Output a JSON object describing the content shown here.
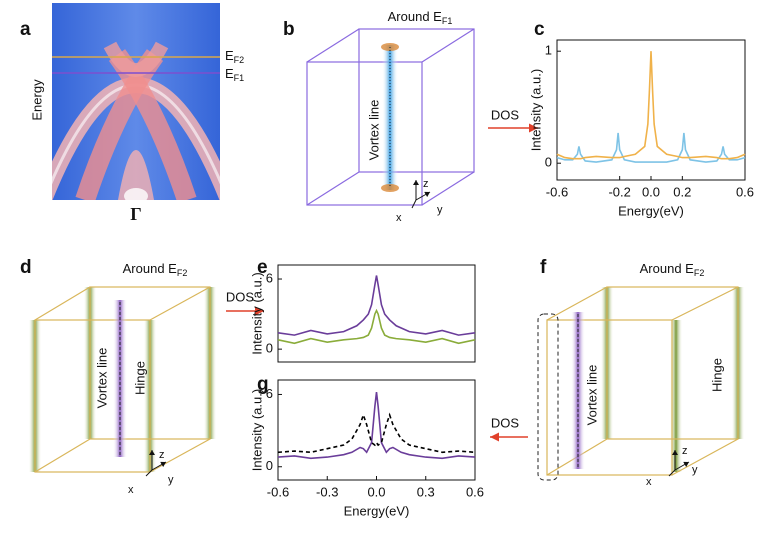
{
  "panel_labels": [
    "a",
    "b",
    "c",
    "d",
    "e",
    "f",
    "g"
  ],
  "panel_a": {
    "y_label": "Energy",
    "x_label": "Γ",
    "levels": [
      {
        "main": "E",
        "sub": "F2"
      },
      {
        "main": "E",
        "sub": "F1"
      }
    ]
  },
  "panel_b": {
    "title": {
      "main": "Around E",
      "sub": "F1"
    },
    "vortex_label": "Vortex line",
    "axes": [
      "z",
      "y",
      "x"
    ],
    "arrow_label": "DOS"
  },
  "panel_d": {
    "title": {
      "main": "Around E",
      "sub": "F2"
    },
    "vortex_label": "Vortex line",
    "hinge_label": "Hinge",
    "axes": [
      "z",
      "y",
      "x"
    ],
    "arrow_label": "DOS"
  },
  "panel_f": {
    "title": {
      "main": "Around E",
      "sub": "F2"
    },
    "vortex_label": "Vortex line",
    "hinge_label": "Hinge",
    "axes": [
      "z",
      "y",
      "x"
    ],
    "arrow_label": "DOS"
  },
  "chart_data": [
    {
      "type": "line",
      "y_label": "Intensity (a.u.)",
      "x_label": "Energy(eV)",
      "x": [
        -0.6,
        -0.55,
        -0.5,
        -0.47,
        -0.46,
        -0.45,
        -0.42,
        -0.35,
        -0.25,
        -0.22,
        -0.21,
        -0.2,
        -0.17,
        -0.1,
        -0.04,
        -0.02,
        -0.01,
        0,
        0.01,
        0.02,
        0.04,
        0.1,
        0.17,
        0.2,
        0.21,
        0.22,
        0.25,
        0.35,
        0.42,
        0.45,
        0.46,
        0.47,
        0.5,
        0.55,
        0.6
      ],
      "series": [
        {
          "color": "#7ec3e6",
          "values": [
            0.05,
            0.03,
            0.03,
            0.08,
            0.15,
            0.08,
            0.02,
            0.01,
            0.03,
            0.12,
            0.27,
            0.12,
            0.03,
            0.01,
            0.01,
            0.01,
            0.01,
            0.01,
            0.01,
            0.01,
            0.01,
            0.01,
            0.03,
            0.12,
            0.27,
            0.12,
            0.03,
            0.01,
            0.02,
            0.08,
            0.15,
            0.08,
            0.03,
            0.03,
            0.05
          ]
        },
        {
          "color": "#f0b24a",
          "values": [
            0.08,
            0.05,
            0.04,
            0.04,
            0.04,
            0.04,
            0.05,
            0.06,
            0.05,
            0.05,
            0.05,
            0.05,
            0.06,
            0.08,
            0.15,
            0.35,
            0.65,
            1,
            0.65,
            0.35,
            0.15,
            0.08,
            0.06,
            0.05,
            0.05,
            0.05,
            0.05,
            0.06,
            0.05,
            0.04,
            0.04,
            0.04,
            0.04,
            0.05,
            0.08
          ]
        }
      ],
      "xlim": [
        -0.6,
        0.6
      ],
      "xticks": [
        -0.6,
        -0.2,
        {
          "value": 0,
          "label": "0.0"
        },
        0.2,
        0.6
      ],
      "ylim": [
        -0.15,
        1.1
      ],
      "yticks": [
        0,
        1
      ]
    },
    {
      "type": "line",
      "y_label": "Intensity (a.u.)",
      "x": [
        -0.6,
        -0.5,
        -0.4,
        -0.3,
        -0.2,
        -0.12,
        -0.08,
        -0.05,
        -0.03,
        -0.01,
        0,
        0.01,
        0.03,
        0.05,
        0.08,
        0.12,
        0.2,
        0.3,
        0.4,
        0.5,
        0.6
      ],
      "series": [
        {
          "color": "#6a3d9a",
          "values": [
            1.4,
            1.2,
            1.6,
            1.3,
            1.5,
            2.0,
            2.5,
            3.0,
            3.8,
            5.5,
            6.3,
            5.5,
            3.8,
            3.0,
            2.5,
            2.0,
            1.5,
            1.3,
            1.6,
            1.2,
            1.4
          ]
        },
        {
          "color": "#8aac3a",
          "values": [
            0.8,
            0.5,
            0.9,
            0.6,
            0.8,
            0.9,
            1.0,
            1.2,
            1.8,
            3.0,
            3.3,
            3.0,
            1.8,
            1.2,
            1.0,
            0.9,
            0.8,
            0.6,
            0.9,
            0.5,
            0.8
          ]
        }
      ],
      "xlim": [
        -0.6,
        0.6
      ],
      "ylim": [
        -1.1,
        7.2
      ],
      "yticks": [
        0,
        6
      ]
    },
    {
      "type": "line",
      "y_label": "Intensity (a.u.)",
      "x_label": "Energy(eV)",
      "x": [
        -0.6,
        -0.5,
        -0.4,
        -0.3,
        -0.2,
        -0.15,
        -0.1,
        -0.08,
        -0.06,
        -0.03,
        -0.01,
        0,
        0.01,
        0.03,
        0.06,
        0.08,
        0.1,
        0.15,
        0.2,
        0.3,
        0.4,
        0.5,
        0.6
      ],
      "series": [
        {
          "color": "#6a3d9a",
          "values": [
            0.8,
            0.9,
            0.7,
            0.8,
            1.0,
            1.2,
            1.6,
            1.5,
            1.2,
            2.0,
            5.0,
            6.2,
            5.0,
            2.0,
            1.2,
            1.5,
            1.6,
            1.2,
            1.0,
            0.8,
            0.7,
            0.9,
            0.8
          ]
        },
        {
          "color": "#000000",
          "dashed": true,
          "values": [
            1.2,
            1.3,
            1.2,
            1.5,
            1.8,
            2.3,
            3.5,
            4.3,
            3.5,
            2.0,
            1.8,
            2.0,
            1.8,
            2.0,
            3.5,
            4.3,
            3.5,
            2.3,
            1.8,
            1.5,
            1.2,
            1.3,
            1.2
          ]
        }
      ],
      "xlim": [
        -0.6,
        0.6
      ],
      "xticks": [
        -0.6,
        -0.3,
        {
          "value": 0,
          "label": "0.0"
        },
        0.3,
        0.6
      ],
      "ylim": [
        -1.1,
        7.2
      ],
      "yticks": [
        0,
        6
      ]
    }
  ]
}
